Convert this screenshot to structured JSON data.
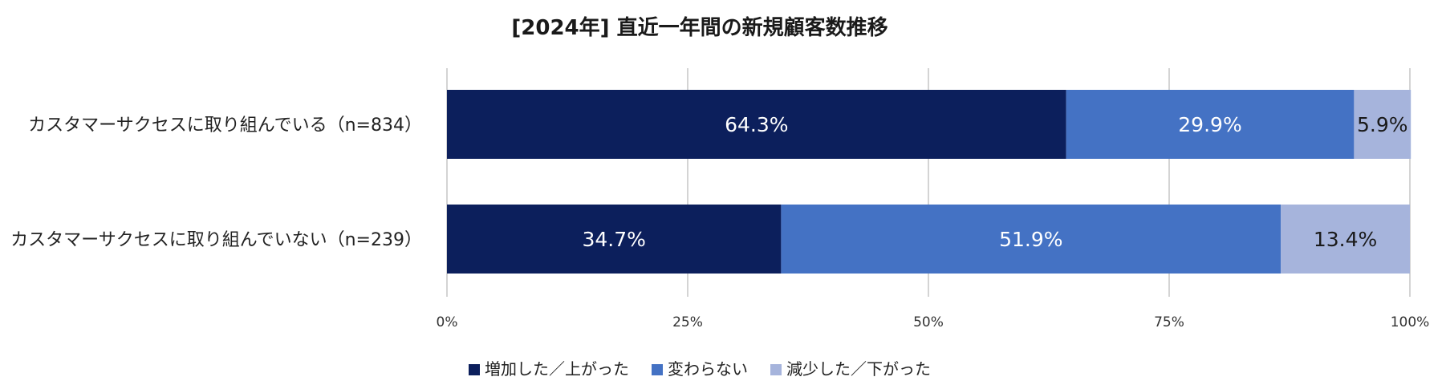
{
  "chart_data": {
    "type": "bar",
    "orientation": "horizontal",
    "stacked": "percent",
    "title": "[2024年] 直近一年間の新規顧客数推移",
    "categories": [
      "カスタマーサクセスに取り組んでいる（n=834）",
      "カスタマーサクセスに取り組んでいない（n=239）"
    ],
    "series": [
      {
        "name": "増加した／上がった",
        "values": [
          64.3,
          34.7
        ],
        "labels": [
          "64.3%",
          "34.7%"
        ],
        "color": "#0c1f5c",
        "label_color": "#ffffff"
      },
      {
        "name": "変わらない",
        "values": [
          29.9,
          51.9
        ],
        "labels": [
          "29.9%",
          "51.9%"
        ],
        "color": "#4472c4",
        "label_color": "#ffffff"
      },
      {
        "name": "減少した／下がった",
        "values": [
          5.9,
          13.4
        ],
        "labels": [
          "5.9%",
          "13.4%"
        ],
        "color": "#a6b4dc",
        "label_color": "#1a1a1a"
      }
    ],
    "x_ticks": [
      "0%",
      "25%",
      "50%",
      "75%",
      "100%"
    ],
    "xlim": [
      0,
      100
    ],
    "grid": true,
    "legend_position": "bottom"
  }
}
